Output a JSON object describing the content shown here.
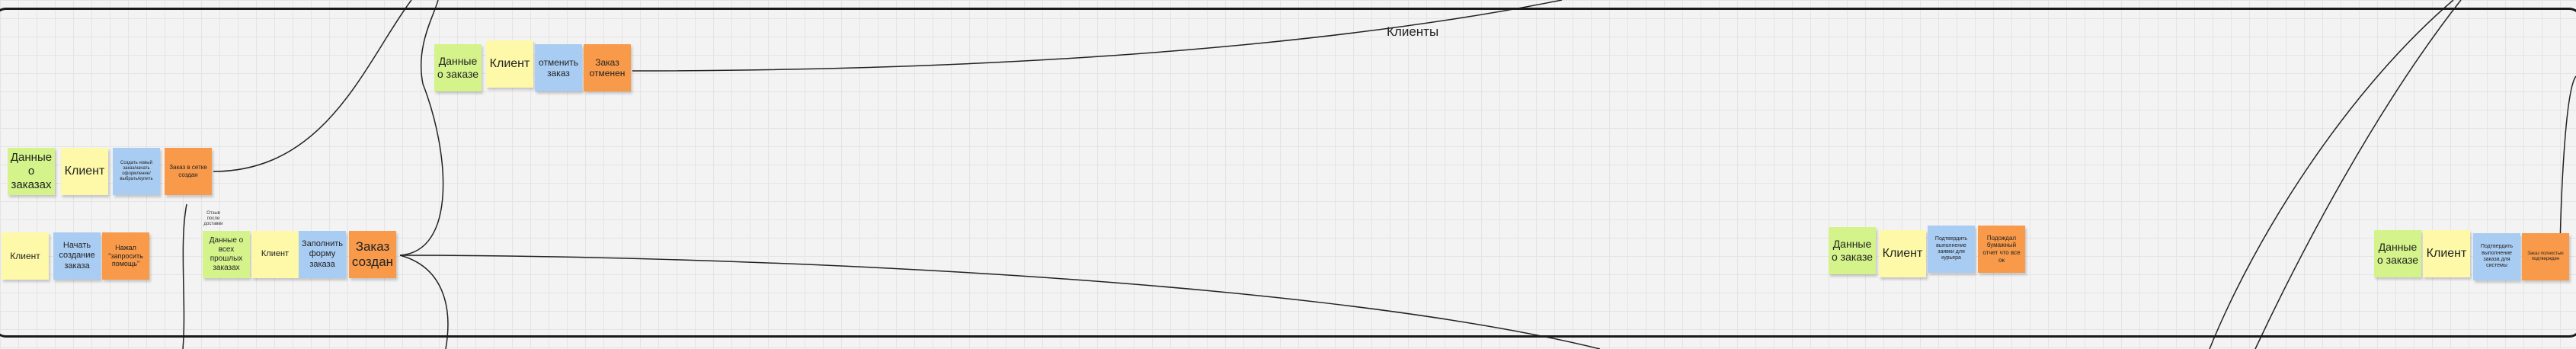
{
  "frame": {
    "title": "Клиенты"
  },
  "small_label": "Отзыв\nпосле\nдоставки",
  "notes": [
    {
      "text": "Данные\nо\nзаказах",
      "color": "green"
    },
    {
      "text": "Клиент",
      "color": "yellow"
    },
    {
      "text": "Создать новый заказ/начать оформление/выбрать/купить",
      "color": "blue"
    },
    {
      "text": "Заказ в сетке создан",
      "color": "orange"
    },
    {
      "text": "Клиент",
      "color": "yellow"
    },
    {
      "text": "Начать создание заказа",
      "color": "blue"
    },
    {
      "text": "Нажал \"запросить помощь\"",
      "color": "orange"
    },
    {
      "text": "Данные о всех прошлых заказах",
      "color": "green"
    },
    {
      "text": "Клиент",
      "color": "yellow"
    },
    {
      "text": "Заполнить форму заказа",
      "color": "blue"
    },
    {
      "text": "Заказ создан",
      "color": "orange"
    },
    {
      "text": "Данные о заказе",
      "color": "green"
    },
    {
      "text": "Клиент",
      "color": "yellow"
    },
    {
      "text": "отменить заказ",
      "color": "blue"
    },
    {
      "text": "Заказ отменен",
      "color": "orange"
    },
    {
      "text": "Данные о заказе",
      "color": "green"
    },
    {
      "text": "Клиент",
      "color": "yellow"
    },
    {
      "text": "Подтвердить выполнение заявки для курьера",
      "color": "blue"
    },
    {
      "text": "Подождал бумажный отчет что все ок",
      "color": "orange"
    },
    {
      "text": "Данные о заказе",
      "color": "green"
    },
    {
      "text": "Клиент",
      "color": "yellow"
    },
    {
      "text": "Подтвердить выполнение заказа для системы",
      "color": "blue"
    },
    {
      "text": "Заказ полностью подтвержден",
      "color": "orange"
    }
  ]
}
